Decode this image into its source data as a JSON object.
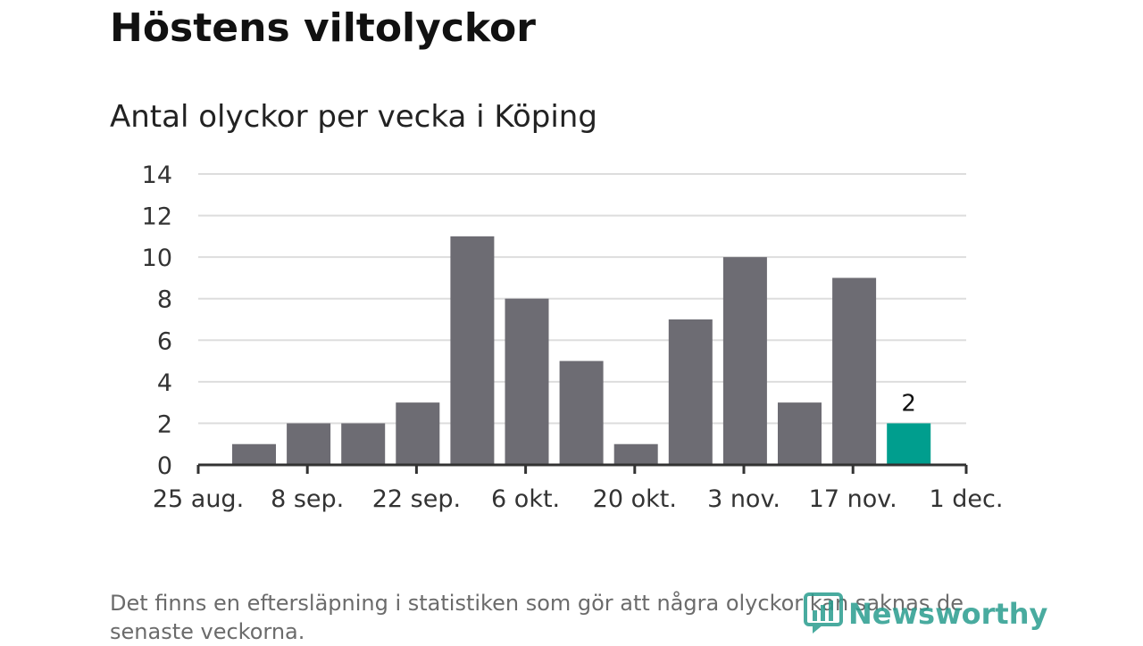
{
  "title": "Höstens viltolyckor",
  "subtitle": "Antal olyckor per vecka i Köping",
  "note": "Det finns en eftersläpning i statistiken som gör att några olyckor kan saknas de senaste veckorna.",
  "logo": {
    "text": "Newsworthy",
    "icon": "newsworthy-logo-icon",
    "color": "#2a9d8f"
  },
  "colors": {
    "bar": "#6d6c73",
    "highlight": "#009e8e",
    "grid": "#dddddd",
    "axis": "#333333"
  },
  "chart_data": {
    "type": "bar",
    "title": "Antal olyckor per vecka i Köping",
    "xlabel": "",
    "ylabel": "",
    "ylim": [
      0,
      14
    ],
    "yticks": [
      "0",
      "2",
      "4",
      "6",
      "8",
      "10",
      "12",
      "14"
    ],
    "xtick_labels": [
      "25 aug.",
      "8 sep.",
      "22 sep.",
      "6 okt.",
      "20 okt.",
      "3 nov.",
      "17 nov.",
      "1 dec."
    ],
    "values": [
      1,
      2,
      2,
      3,
      11,
      8,
      5,
      1,
      7,
      10,
      3,
      9,
      2
    ],
    "highlight_index": 12,
    "highlight_label": "2",
    "grid": true
  }
}
